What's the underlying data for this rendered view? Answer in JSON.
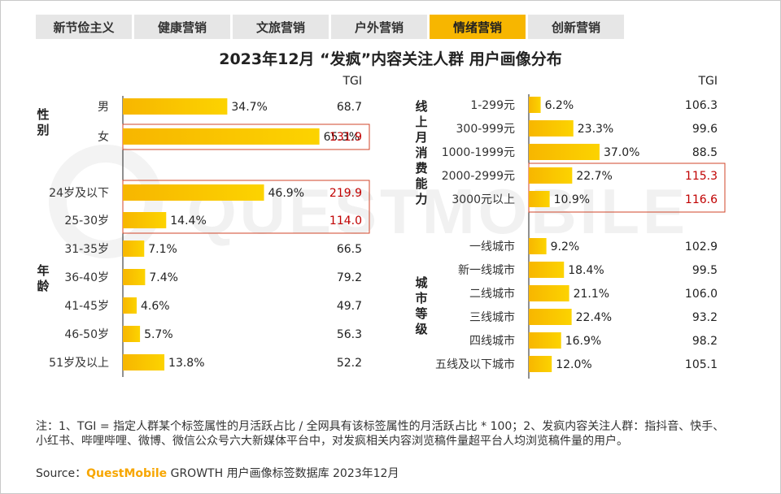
{
  "tabs": [
    {
      "label": "新节俭主义",
      "active": false
    },
    {
      "label": "健康营销",
      "active": false
    },
    {
      "label": "文旅营销",
      "active": false
    },
    {
      "label": "户外营销",
      "active": false
    },
    {
      "label": "情绪营销",
      "active": true
    },
    {
      "label": "创新营销",
      "active": false
    }
  ],
  "title": "2023年12月 “发疯”内容关注人群 用户画像分布",
  "watermark": "QUESTMOBILE",
  "colors": {
    "bar": "#f7b600",
    "bar_light": "#fcd300",
    "tgi_high": "#c00000",
    "highlight_box": "#d0462a",
    "text": "#222222"
  },
  "chart_data": [
    {
      "type": "bar",
      "orientation": "horizontal",
      "tgi_header": "TGI",
      "groups": [
        {
          "label": "性别",
          "categories": [
            "男",
            "女"
          ],
          "values": [
            34.7,
            65.3
          ],
          "labels": [
            "34.7%",
            "65.3%"
          ],
          "tgi": [
            "68.7",
            "131.9"
          ],
          "highlight": [
            false,
            true
          ]
        },
        {
          "label": "年龄",
          "categories": [
            "24岁及以下",
            "25-30岁",
            "31-35岁",
            "36-40岁",
            "41-45岁",
            "46-50岁",
            "51岁及以上"
          ],
          "values": [
            46.9,
            14.4,
            7.1,
            7.4,
            4.6,
            5.7,
            13.8
          ],
          "labels": [
            "46.9%",
            "14.4%",
            "7.1%",
            "7.4%",
            "4.6%",
            "5.7%",
            "13.8%"
          ],
          "tgi": [
            "219.9",
            "114.0",
            "66.5",
            "79.2",
            "49.7",
            "56.3",
            "52.2"
          ],
          "highlight": [
            true,
            true,
            false,
            false,
            false,
            false,
            false
          ]
        }
      ]
    },
    {
      "type": "bar",
      "orientation": "horizontal",
      "tgi_header": "TGI",
      "groups": [
        {
          "label": "线上月消费能力",
          "categories": [
            "1-299元",
            "300-999元",
            "1000-1999元",
            "2000-2999元",
            "3000元以上"
          ],
          "values": [
            6.2,
            23.3,
            37.0,
            22.7,
            10.9
          ],
          "labels": [
            "6.2%",
            "23.3%",
            "37.0%",
            "22.7%",
            "10.9%"
          ],
          "tgi": [
            "106.3",
            "99.6",
            "88.5",
            "115.3",
            "116.6"
          ],
          "highlight": [
            false,
            false,
            false,
            true,
            true
          ]
        },
        {
          "label": "城市等级",
          "categories": [
            "一线城市",
            "新一线城市",
            "二线城市",
            "三线城市",
            "四线城市",
            "五线及以下城市"
          ],
          "values": [
            9.2,
            18.4,
            21.1,
            22.4,
            16.9,
            12.0
          ],
          "labels": [
            "9.2%",
            "18.4%",
            "21.1%",
            "22.4%",
            "16.9%",
            "12.0%"
          ],
          "tgi": [
            "102.9",
            "99.5",
            "106.0",
            "93.2",
            "98.2",
            "105.1"
          ],
          "highlight": [
            false,
            false,
            false,
            false,
            false,
            false
          ]
        }
      ]
    }
  ],
  "notes": "注：1、TGI = 指定人群某个标签属性的月活跃占比 / 全网具有该标签属性的月活跃占比 * 100；2、发疯内容关注人群：指抖音、快手、小红书、哔哩哔哩、微博、微信公众号六大新媒体平台中，对发疯相关内容浏览稿件量超平台人均浏览稿件量的用户。",
  "source": {
    "prefix": "Source：",
    "brand": "QuestMobile",
    "suffix": " GROWTH 用户画像标签数据库 2023年12月"
  }
}
